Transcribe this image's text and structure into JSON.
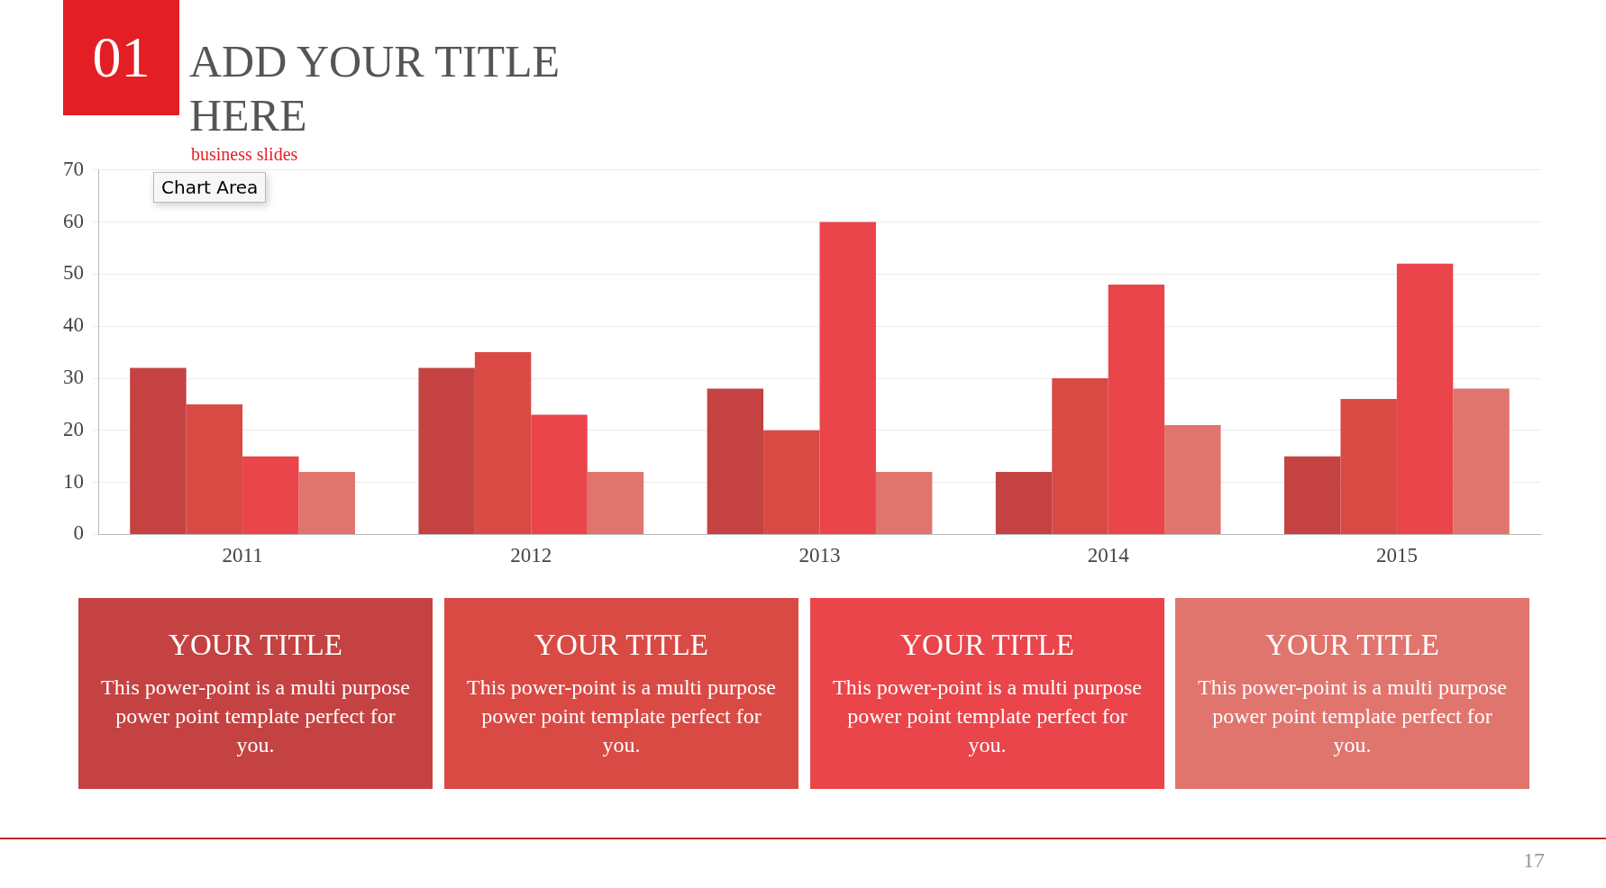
{
  "chart_data": {
    "type": "bar",
    "title": "ADD YOUR TITLE HERE",
    "subtitle": "business slides",
    "categories": [
      "2011",
      "2012",
      "2013",
      "2014",
      "2015"
    ],
    "series": [
      {
        "color": "#c44242",
        "values": [
          32,
          32,
          28,
          12,
          15
        ]
      },
      {
        "color": "#d94a45",
        "values": [
          25,
          35,
          20,
          30,
          26
        ]
      },
      {
        "color": "#e9454a",
        "values": [
          15,
          23,
          60,
          48,
          52
        ]
      },
      {
        "color": "#e0756e",
        "values": [
          12,
          12,
          12,
          21,
          28
        ]
      }
    ],
    "ylim": [
      0,
      70
    ],
    "yticks": [
      0,
      10,
      20,
      30,
      40,
      50,
      60,
      70
    ],
    "grid": "y",
    "legend": false,
    "annotations": [
      "01",
      "Chart Area",
      "YOUR TITLE",
      "This power-point is a multi purpose power point template perfect for you.",
      "YOUR TITLE",
      "This power-point is a multi purpose power point template perfect for you.",
      "YOUR TITLE",
      "This power-point is a multi purpose power point template perfect for you.",
      "YOUR TITLE",
      "This power-point is a multi purpose power point template perfect for you.",
      "17"
    ]
  }
}
